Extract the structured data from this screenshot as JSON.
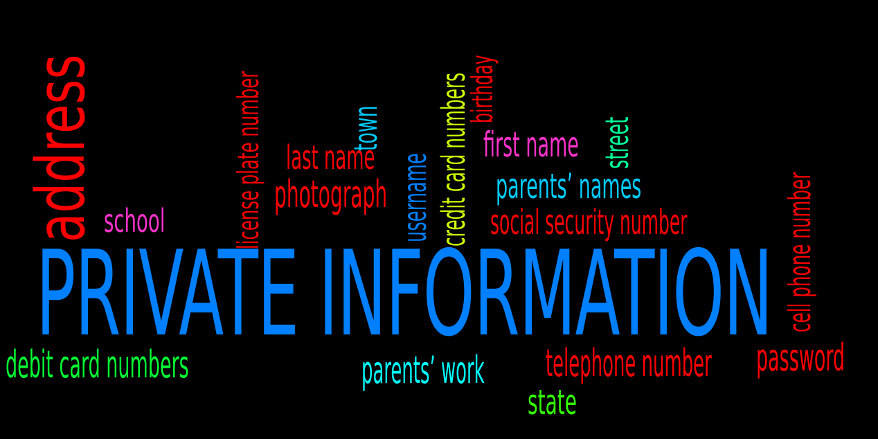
{
  "title": "PRIVATE INFORMATION",
  "words": {
    "address": "address",
    "school": "school",
    "license_plate_number": "license plate number",
    "last_name": "last name",
    "photograph": "photograph",
    "town": "town",
    "username": "username",
    "credit_card_numbers": "credit card numbers",
    "birthday": "birthday",
    "first_name": "first name",
    "street": "street",
    "parents_names": "parents’ names",
    "social_security_number": "social security number",
    "cell_phone_number": "cell phone number",
    "debit_card_numbers": "debit card numbers",
    "parents_work": "parents’ work",
    "telephone_number": "telephone number",
    "password": "password",
    "state": "state"
  },
  "colors": {
    "background": "#000000",
    "title": "#0080ff",
    "red": "#ff0000",
    "magenta": "#ff33cc",
    "cyan": "#00ccff",
    "yellow_green": "#ccff00",
    "green": "#00ff33",
    "mint": "#00ff99"
  }
}
